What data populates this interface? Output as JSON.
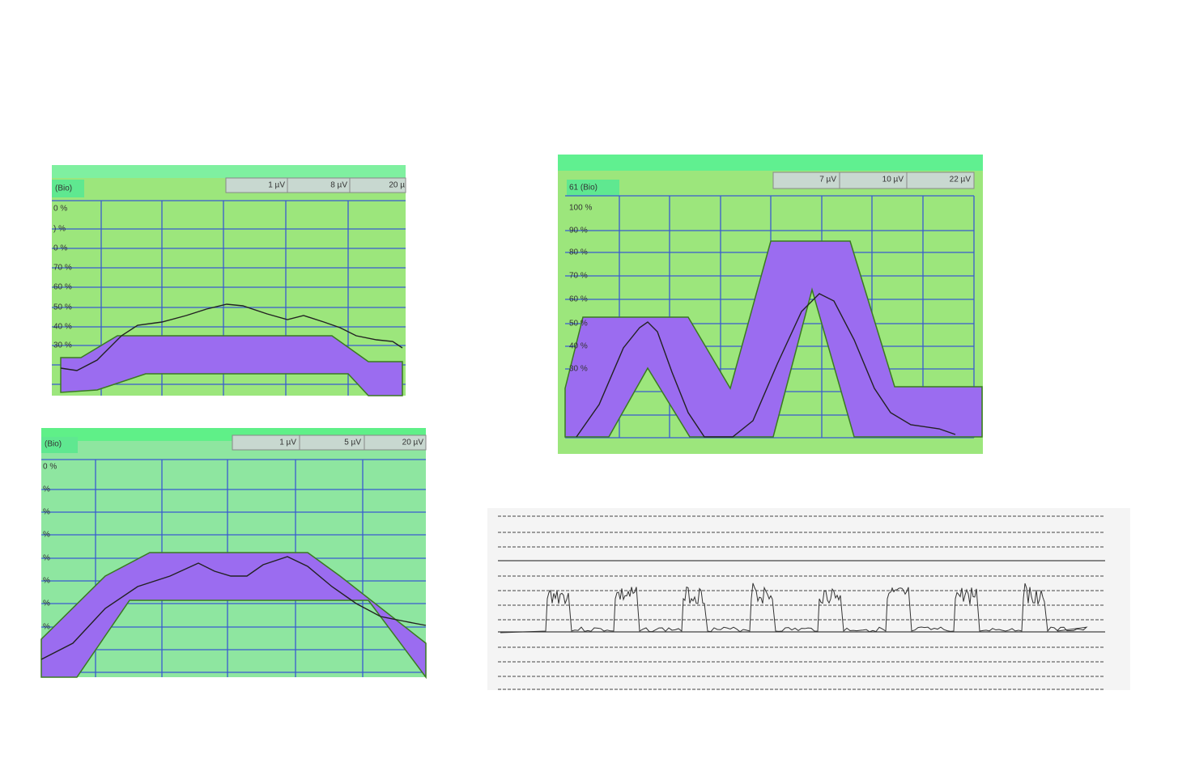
{
  "panels": [
    {
      "channel": "(Bio)",
      "scales": [
        "1 µV",
        "8 µV",
        "20 µ"
      ],
      "y_labels": [
        "0 %",
        ") %",
        "0 %",
        "70 %",
        "60 %",
        "50 %",
        "40 %",
        "30 %"
      ]
    },
    {
      "channel": "61 (Bio)",
      "scales": [
        "7 µV",
        "10 µV",
        "22 µV"
      ],
      "y_labels": [
        "100 %",
        "90 %",
        "80 %",
        "70 %",
        "60 %",
        "50 %",
        "40 %",
        "30 %"
      ]
    },
    {
      "channel": "(Bio)",
      "scales": [
        "1 µV",
        "5 µV",
        "20 µV"
      ],
      "y_labels": [
        "0 %",
        "%",
        "%",
        "%",
        "%",
        "%",
        "%",
        "%"
      ]
    }
  ]
}
